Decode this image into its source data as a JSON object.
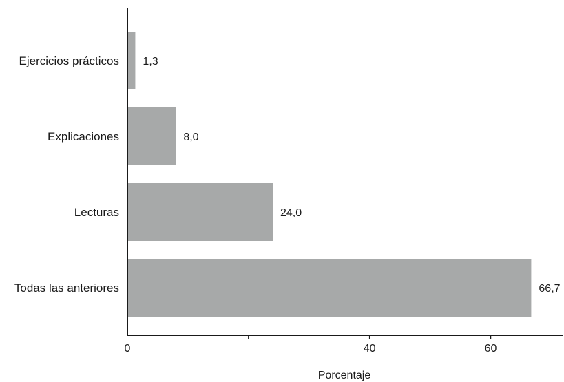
{
  "chart_data": {
    "type": "bar",
    "orientation": "horizontal",
    "categories": [
      "Ejercicios prácticos",
      "Explicaciones",
      "Lecturas",
      "Todas las anteriores"
    ],
    "values": [
      1.3,
      8.0,
      24.0,
      66.7
    ],
    "value_labels": [
      "1,3",
      "8,0",
      "24,0",
      "66,7"
    ],
    "xlabel": "Porcentaje",
    "ylabel": "",
    "xlim": [
      0,
      72
    ],
    "xticks": [
      {
        "value": 0,
        "label": "0"
      },
      {
        "value": 20,
        "label": ""
      },
      {
        "value": 40,
        "label": "40"
      },
      {
        "value": 60,
        "label": "60"
      }
    ],
    "bar_color": "#a7a9a9",
    "axis_color": "#1a1a1a",
    "grid": false,
    "legend": "none"
  }
}
